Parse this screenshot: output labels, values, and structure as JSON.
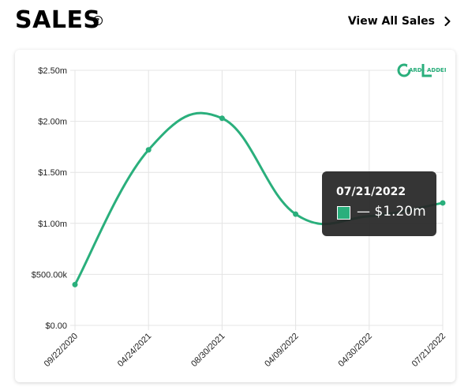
{
  "header": {
    "title": "SALES",
    "help_icon": "question-circle-icon",
    "view_all_label": "View All Sales",
    "view_all_icon": "chevron-right-icon"
  },
  "logo": {
    "letter_left": "C",
    "text_top": "ARD",
    "letter_right": "L",
    "text_right": "ADDER"
  },
  "tooltip": {
    "date": "07/21/2022",
    "value": "— $1.20m"
  },
  "colors": {
    "line": "#2aaf7c",
    "tooltip_bg": "#262626"
  },
  "chart_data": {
    "type": "line",
    "x": [
      "09/22/2020",
      "04/24/2021",
      "08/30/2021",
      "04/09/2022",
      "04/30/2022",
      "07/21/2022"
    ],
    "values": [
      400000,
      1720000,
      2030000,
      1090000,
      1070000,
      1200000
    ],
    "y_ticks": [
      "$0.00",
      "$500.00k",
      "$1.00m",
      "$1.50m",
      "$2.00m",
      "$2.50m"
    ],
    "ylim": [
      0,
      2500000
    ],
    "grid": true,
    "markers": [
      true,
      true,
      true,
      true,
      false,
      true
    ]
  }
}
